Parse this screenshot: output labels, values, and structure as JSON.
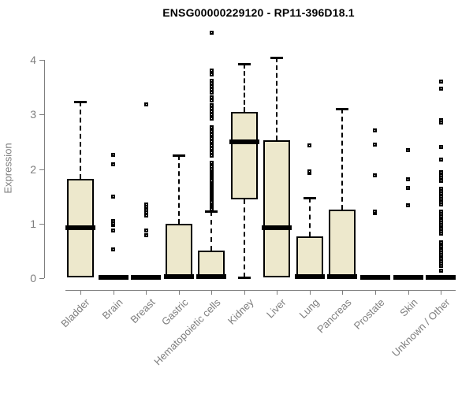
{
  "chart_data": {
    "type": "boxplot",
    "title": "ENSG00000229120 - RP11-396D18.1",
    "ylabel": "Expression",
    "xlabel": "",
    "ylim": [
      0,
      4
    ],
    "yticks": [
      "0",
      "1",
      "2",
      "3",
      "4"
    ],
    "grid": false,
    "legend": false,
    "categories": [
      "Bladder",
      "Brain",
      "Breast",
      "Gastric",
      "Hematopoietic cells",
      "Kidney",
      "Liver",
      "Lung",
      "Pancreas",
      "Prostate",
      "Skin",
      "Unknown / Other"
    ],
    "series": [
      {
        "category": "Bladder",
        "whisker_low": 0.02,
        "q1": 0.02,
        "median": 0.93,
        "q3": 1.82,
        "whisker_high": 3.24,
        "outliers": []
      },
      {
        "category": "Brain",
        "whisker_low": 0,
        "q1": 0,
        "median": 0.015,
        "q3": 0.03,
        "whisker_high": 0.03,
        "outliers": [
          0.52,
          0.87,
          0.98,
          1.01,
          1.04,
          1.49,
          2.09,
          2.26
        ]
      },
      {
        "category": "Breast",
        "whisker_low": 0,
        "q1": 0,
        "median": 0.015,
        "q3": 0.03,
        "whisker_high": 0.03,
        "outliers": [
          0.79,
          0.88,
          1.15,
          1.2,
          1.25,
          1.3,
          1.35,
          3.18
        ]
      },
      {
        "category": "Gastric",
        "whisker_low": 0.01,
        "q1": 0.01,
        "median": 0.03,
        "q3": 1.0,
        "whisker_high": 2.25,
        "outliers": []
      },
      {
        "category": "Hematopoietic cells",
        "whisker_low": 0.01,
        "q1": 0.01,
        "median": 0.03,
        "q3": 0.5,
        "whisker_high": 1.23,
        "outliers": [
          1.27,
          1.31,
          1.34,
          1.37,
          1.4,
          1.43,
          1.46,
          1.49,
          1.52,
          1.55,
          1.58,
          1.61,
          1.64,
          1.67,
          1.7,
          1.73,
          1.76,
          1.79,
          1.82,
          1.85,
          1.88,
          1.91,
          1.94,
          1.97,
          2.0,
          2.04,
          2.08,
          2.11,
          2.25,
          2.31,
          2.37,
          2.43,
          2.5,
          2.57,
          2.63,
          2.7,
          2.76,
          2.93,
          2.99,
          3.05,
          3.11,
          3.17,
          3.26,
          3.32,
          3.4,
          3.46,
          3.52,
          3.58,
          3.62,
          3.73,
          3.8,
          4.5
        ]
      },
      {
        "category": "Kidney",
        "whisker_low": 0.02,
        "q1": 1.45,
        "median": 2.5,
        "q3": 3.05,
        "whisker_high": 3.93,
        "outliers": []
      },
      {
        "category": "Liver",
        "whisker_low": 0.01,
        "q1": 0.01,
        "median": 0.92,
        "q3": 2.52,
        "whisker_high": 4.05,
        "outliers": []
      },
      {
        "category": "Lung",
        "whisker_low": 0.01,
        "q1": 0.01,
        "median": 0.03,
        "q3": 0.76,
        "whisker_high": 1.47,
        "outliers": [
          1.93,
          1.96,
          2.43
        ]
      },
      {
        "category": "Pancreas",
        "whisker_low": 0.01,
        "q1": 0.01,
        "median": 0.03,
        "q3": 1.26,
        "whisker_high": 3.1,
        "outliers": []
      },
      {
        "category": "Prostate",
        "whisker_low": 0,
        "q1": 0,
        "median": 0.015,
        "q3": 0.03,
        "whisker_high": 0.03,
        "outliers": [
          1.19,
          1.22,
          1.88,
          2.45,
          2.71
        ]
      },
      {
        "category": "Skin",
        "whisker_low": 0,
        "q1": 0,
        "median": 0.015,
        "q3": 0.03,
        "whisker_high": 0.03,
        "outliers": [
          1.34,
          1.66,
          1.81,
          2.35
        ]
      },
      {
        "category": "Unknown / Other",
        "whisker_low": 0,
        "q1": 0,
        "median": 0.015,
        "q3": 0.03,
        "whisker_high": 0.03,
        "outliers": [
          0.14,
          0.23,
          0.27,
          0.31,
          0.35,
          0.39,
          0.43,
          0.47,
          0.51,
          0.55,
          0.59,
          0.63,
          0.66,
          0.82,
          0.86,
          0.9,
          0.94,
          0.98,
          1.02,
          1.06,
          1.1,
          1.14,
          1.18,
          1.22,
          1.35,
          1.4,
          1.45,
          1.5,
          1.55,
          1.6,
          1.64,
          1.79,
          1.84,
          1.89,
          1.94,
          2.18,
          2.4,
          2.85,
          2.89,
          3.47,
          3.6
        ]
      }
    ],
    "colors": {
      "box_fill": "#EDE8CC",
      "box_border": "#000000",
      "median": "#000000",
      "whisker": "#000000",
      "axis": "#7E7E7E",
      "tick_label": "#7E7E7E",
      "title": "#000000",
      "background": "#FFFFFF"
    }
  }
}
